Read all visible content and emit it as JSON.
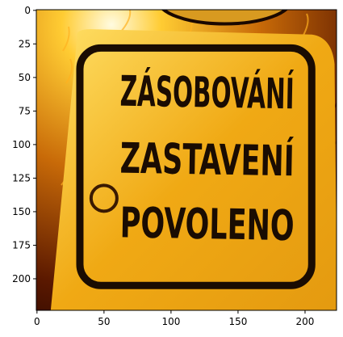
{
  "axes": {
    "xlim": [
      -0.5,
      223.5
    ],
    "ylim": [
      223.5,
      -0.5
    ],
    "xticks": [
      0,
      50,
      100,
      150,
      200
    ],
    "yticks": [
      0,
      25,
      50,
      75,
      100,
      125,
      150,
      175,
      200
    ]
  },
  "image": {
    "sign_text": [
      "ZÁSOBOVÁNÍ",
      "ZASTAVENÍ",
      "POVOLENO"
    ]
  }
}
